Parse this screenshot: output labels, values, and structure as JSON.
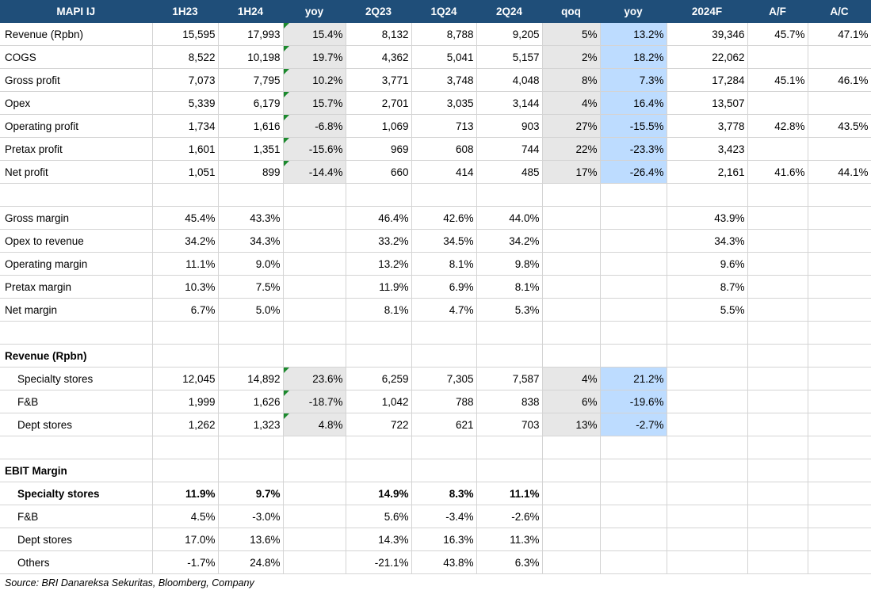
{
  "headers": [
    "MAPI IJ",
    "1H23",
    "1H24",
    "yoy",
    "2Q23",
    "1Q24",
    "2Q24",
    "qoq",
    "yoy",
    "2024F",
    "A/F",
    "A/C"
  ],
  "pnl": [
    [
      "Revenue (Rpbn)",
      "15,595",
      "17,993",
      "15.4%",
      "8,132",
      "8,788",
      "9,205",
      "5%",
      "13.2%",
      "39,346",
      "45.7%",
      "47.1%"
    ],
    [
      "COGS",
      "8,522",
      "10,198",
      "19.7%",
      "4,362",
      "5,041",
      "5,157",
      "2%",
      "18.2%",
      "22,062",
      "",
      ""
    ],
    [
      "Gross profit",
      "7,073",
      "7,795",
      "10.2%",
      "3,771",
      "3,748",
      "4,048",
      "8%",
      "7.3%",
      "17,284",
      "45.1%",
      "46.1%"
    ],
    [
      "Opex",
      "5,339",
      "6,179",
      "15.7%",
      "2,701",
      "3,035",
      "3,144",
      "4%",
      "16.4%",
      "13,507",
      "",
      ""
    ],
    [
      "Operating profit",
      "1,734",
      "1,616",
      "-6.8%",
      "1,069",
      "713",
      "903",
      "27%",
      "-15.5%",
      "3,778",
      "42.8%",
      "43.5%"
    ],
    [
      "Pretax profit",
      "1,601",
      "1,351",
      "-15.6%",
      "969",
      "608",
      "744",
      "22%",
      "-23.3%",
      "3,423",
      "",
      ""
    ],
    [
      "Net profit",
      "1,051",
      "899",
      "-14.4%",
      "660",
      "414",
      "485",
      "17%",
      "-26.4%",
      "2,161",
      "41.6%",
      "44.1%"
    ]
  ],
  "margins": [
    [
      "Gross margin",
      "45.4%",
      "43.3%",
      "",
      "46.4%",
      "42.6%",
      "44.0%",
      "",
      "",
      "43.9%",
      "",
      ""
    ],
    [
      "Opex to revenue",
      "34.2%",
      "34.3%",
      "",
      "33.2%",
      "34.5%",
      "34.2%",
      "",
      "",
      "34.3%",
      "",
      ""
    ],
    [
      "Operating margin",
      "11.1%",
      "9.0%",
      "",
      "13.2%",
      "8.1%",
      "9.8%",
      "",
      "",
      "9.6%",
      "",
      ""
    ],
    [
      "Pretax margin",
      "10.3%",
      "7.5%",
      "",
      "11.9%",
      "6.9%",
      "8.1%",
      "",
      "",
      "8.7%",
      "",
      ""
    ],
    [
      "Net margin",
      "6.7%",
      "5.0%",
      "",
      "8.1%",
      "4.7%",
      "5.3%",
      "",
      "",
      "5.5%",
      "",
      ""
    ]
  ],
  "revenue_title": "Revenue (Rpbn)",
  "revenue": [
    [
      "Specialty stores",
      "12,045",
      "14,892",
      "23.6%",
      "6,259",
      "7,305",
      "7,587",
      "4%",
      "21.2%",
      "",
      "",
      ""
    ],
    [
      "F&B",
      "1,999",
      "1,626",
      "-18.7%",
      "1,042",
      "788",
      "838",
      "6%",
      "-19.6%",
      "",
      "",
      ""
    ],
    [
      "Dept stores",
      "1,262",
      "1,323",
      "4.8%",
      "722",
      "621",
      "703",
      "13%",
      "-2.7%",
      "",
      "",
      ""
    ]
  ],
  "ebit_title": "EBIT Margin",
  "ebit": [
    [
      "Specialty stores",
      "11.9%",
      "9.7%",
      "",
      "14.9%",
      "8.3%",
      "11.1%",
      "",
      "",
      "",
      "",
      ""
    ],
    [
      "F&B",
      "4.5%",
      "-3.0%",
      "",
      "5.6%",
      "-3.4%",
      "-2.6%",
      "",
      "",
      "",
      "",
      ""
    ],
    [
      "Dept stores",
      "17.0%",
      "13.6%",
      "",
      "14.3%",
      "16.3%",
      "11.3%",
      "",
      "",
      "",
      "",
      ""
    ],
    [
      "Others",
      "-1.7%",
      "24.8%",
      "",
      "-21.1%",
      "43.8%",
      "6.3%",
      "",
      "",
      "",
      "",
      ""
    ]
  ],
  "source": "Source: BRI Danareksa Sekuritas, Bloomberg, Company",
  "colors": {
    "header_bg": "#1f4e79",
    "grey_fill": "#e7e7e7",
    "blue_fill": "#bddcff",
    "comment_marker": "#1c8a2e"
  }
}
